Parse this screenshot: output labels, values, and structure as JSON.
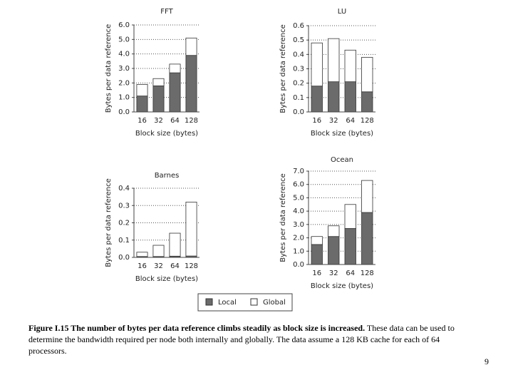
{
  "chart_data": [
    {
      "type": "bar",
      "stacked": true,
      "title": "FFT",
      "categories": [
        "16",
        "32",
        "64",
        "128"
      ],
      "x_label": "Block size (bytes)",
      "y_label": "Bytes per data reference",
      "series": [
        {
          "name": "Local",
          "color": "#6b6b6b",
          "values": [
            1.1,
            1.8,
            2.7,
            3.9
          ]
        },
        {
          "name": "Global",
          "color": "#ffffff",
          "values": [
            0.8,
            0.5,
            0.6,
            1.2
          ]
        }
      ],
      "ylim": [
        0,
        6
      ],
      "yticks": [
        {
          "value": 0,
          "label": "0.0"
        },
        {
          "value": 1,
          "label": "1.0"
        },
        {
          "value": 2,
          "label": "2.0"
        },
        {
          "value": 3,
          "label": "3.0"
        },
        {
          "value": 4,
          "label": "4.0"
        },
        {
          "value": 5,
          "label": "5.0"
        },
        {
          "value": 6,
          "label": "6.0"
        }
      ],
      "grid": true
    },
    {
      "type": "bar",
      "stacked": true,
      "title": "LU",
      "categories": [
        "16",
        "32",
        "64",
        "128"
      ],
      "x_label": "Block size (bytes)",
      "y_label": "Bytes per data reference",
      "series": [
        {
          "name": "Local",
          "color": "#6b6b6b",
          "values": [
            0.18,
            0.21,
            0.21,
            0.14
          ]
        },
        {
          "name": "Global",
          "color": "#ffffff",
          "values": [
            0.3,
            0.3,
            0.22,
            0.24
          ]
        }
      ],
      "ylim": [
        0,
        0.6
      ],
      "yticks": [
        {
          "value": 0,
          "label": "0.0"
        },
        0.1,
        0.2,
        0.3,
        0.4,
        0.5,
        0.6
      ],
      "grid": true
    },
    {
      "type": "bar",
      "stacked": true,
      "title": "Barnes",
      "categories": [
        "16",
        "32",
        "64",
        "128"
      ],
      "x_label": "Block size (bytes)",
      "y_label": "Bytes per data reference",
      "series": [
        {
          "name": "Local",
          "color": "#6b6b6b",
          "values": [
            0.005,
            0.005,
            0.007,
            0.008
          ]
        },
        {
          "name": "Global",
          "color": "#ffffff",
          "values": [
            0.025,
            0.065,
            0.133,
            0.312
          ]
        }
      ],
      "ylim": [
        0,
        0.4
      ],
      "yticks": [
        {
          "value": 0,
          "label": "0.0"
        },
        0.1,
        0.2,
        0.3,
        0.4
      ],
      "grid": true
    },
    {
      "type": "bar",
      "stacked": true,
      "title": "Ocean",
      "categories": [
        "16",
        "32",
        "64",
        "128"
      ],
      "x_label": "Block size (bytes)",
      "y_label": "Bytes per data reference",
      "series": [
        {
          "name": "Local",
          "color": "#6b6b6b",
          "values": [
            1.5,
            2.1,
            2.7,
            3.9
          ]
        },
        {
          "name": "Global",
          "color": "#ffffff",
          "values": [
            0.6,
            0.8,
            1.8,
            2.4
          ]
        }
      ],
      "ylim": [
        0,
        7
      ],
      "yticks": [
        {
          "value": 0,
          "label": "0.0"
        },
        {
          "value": 1,
          "label": "1.0"
        },
        {
          "value": 2,
          "label": "2.0"
        },
        {
          "value": 3,
          "label": "3.0"
        },
        {
          "value": 4,
          "label": "4.0"
        },
        {
          "value": 5,
          "label": "5.0"
        },
        {
          "value": 6,
          "label": "6.0"
        },
        {
          "value": 7,
          "label": "7.0"
        }
      ],
      "grid": true
    }
  ],
  "caption": {
    "label": "Figure I.15 The number of bytes per data reference climbs steadily as block size is increased.",
    "text": "These data can be used to determine the bandwidth required per node both internally and globally. The data assume a 128 KB cache for each of 64 processors."
  },
  "page_number": "9"
}
